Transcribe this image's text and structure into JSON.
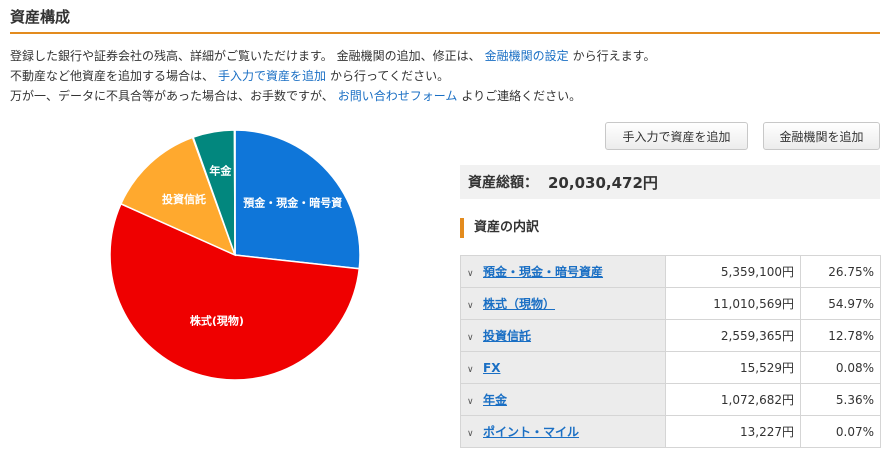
{
  "page": {
    "title": "資産構成"
  },
  "description": {
    "line1_a": "登録した銀行や証券会社の残高、詳細がご覧いただけます。 金融機関の追加、修正は、",
    "line1_link": "金融機関の設定",
    "line1_b": "から行えます。",
    "line2_a": "不動産など他資産を追加する場合は、",
    "line2_link": "手入力で資産を追加",
    "line2_b": "から行ってください。",
    "line3_a": "万が一、データに不具合等があった場合は、お手数ですが、",
    "line3_link": "お問い合わせフォーム",
    "line3_b": "よりご連絡ください。"
  },
  "buttons": {
    "add_manual": "手入力で資産を追加",
    "add_institution": "金融機関を追加"
  },
  "total": {
    "label": "資産総額：",
    "value": "20,030,472円"
  },
  "breakdown": {
    "heading": "資産の内訳",
    "rows": [
      {
        "name": "預金・現金・暗号資産",
        "amount": "5,359,100円",
        "percent": "26.75%"
      },
      {
        "name": "株式（現物）",
        "amount": "11,010,569円",
        "percent": "54.97%"
      },
      {
        "name": "投資信託",
        "amount": "2,559,365円",
        "percent": "12.78%"
      },
      {
        "name": "FX",
        "amount": "15,529円",
        "percent": "0.08%"
      },
      {
        "name": "年金",
        "amount": "1,072,682円",
        "percent": "5.36%"
      },
      {
        "name": "ポイント・マイル",
        "amount": "13,227円",
        "percent": "0.07%"
      }
    ]
  },
  "chart_data": {
    "type": "pie",
    "categories": [
      "預金・現金・暗号資産",
      "株式(現物)",
      "投資信託",
      "FX",
      "年金",
      "ポイント・マイル"
    ],
    "values": [
      26.75,
      54.97,
      12.78,
      0.08,
      5.36,
      0.07
    ],
    "slice_labels": [
      "預金・現金・暗号資",
      "株式(現物)",
      "投資信託",
      "",
      "年金",
      ""
    ],
    "colors": [
      "#0f76d9",
      "#ef0000",
      "#ffa92e",
      "#8e44ad",
      "#02877e",
      "#b3b3b3"
    ]
  }
}
